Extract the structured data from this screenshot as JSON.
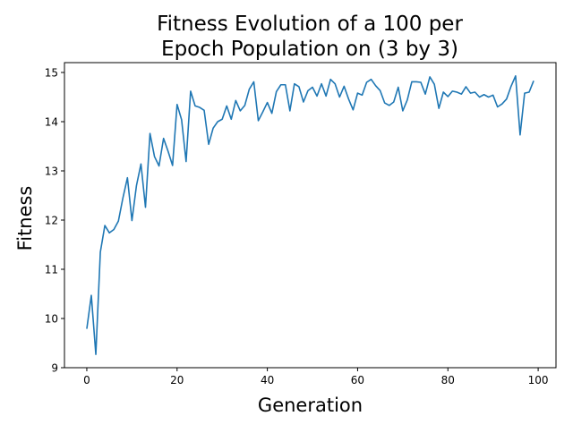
{
  "chart_data": {
    "type": "line",
    "title_lines": [
      "Fitness Evolution of a 100 per",
      "Epoch Population on (3 by 3)"
    ],
    "xlabel": "Generation",
    "ylabel": "Fitness",
    "xlim": [
      -4.95,
      103.95
    ],
    "ylim": [
      9.0,
      15.2
    ],
    "xticks": [
      0,
      20,
      40,
      60,
      80,
      100
    ],
    "xtick_labels": [
      "0",
      "20",
      "40",
      "60",
      "80",
      "100"
    ],
    "yticks": [
      9,
      10,
      11,
      12,
      13,
      14,
      15
    ],
    "ytick_labels": [
      "9",
      "10",
      "11",
      "12",
      "13",
      "14",
      "15"
    ],
    "grid": false,
    "series": [
      {
        "color": "#1f77b4",
        "x": [
          0,
          1,
          2,
          3,
          4,
          5,
          6,
          7,
          8,
          9,
          10,
          11,
          12,
          13,
          14,
          15,
          16,
          17,
          18,
          19,
          20,
          21,
          22,
          23,
          24,
          25,
          26,
          27,
          28,
          29,
          30,
          31,
          32,
          33,
          34,
          35,
          36,
          37,
          38,
          39,
          40,
          41,
          42,
          43,
          44,
          45,
          46,
          47,
          48,
          49,
          50,
          51,
          52,
          53,
          54,
          55,
          56,
          57,
          58,
          59,
          60,
          61,
          62,
          63,
          64,
          65,
          66,
          67,
          68,
          69,
          70,
          71,
          72,
          73,
          74,
          75,
          76,
          77,
          78,
          79,
          80,
          81,
          82,
          83,
          84,
          85,
          86,
          87,
          88,
          89,
          90,
          91,
          92,
          93,
          94,
          95,
          96,
          97,
          98,
          99
        ],
        "y": [
          9.79,
          10.47,
          9.27,
          11.35,
          11.89,
          11.74,
          11.81,
          11.98,
          12.45,
          12.86,
          11.99,
          12.7,
          13.14,
          12.26,
          13.76,
          13.29,
          13.1,
          13.66,
          13.4,
          13.11,
          14.35,
          14.04,
          13.19,
          14.62,
          14.32,
          14.29,
          14.23,
          13.54,
          13.87,
          14.0,
          14.05,
          14.32,
          14.05,
          14.43,
          14.22,
          14.33,
          14.66,
          14.81,
          14.02,
          14.2,
          14.39,
          14.17,
          14.61,
          14.75,
          14.75,
          14.22,
          14.77,
          14.71,
          14.4,
          14.63,
          14.7,
          14.52,
          14.77,
          14.52,
          14.86,
          14.77,
          14.5,
          14.72,
          14.46,
          14.24,
          14.58,
          14.54,
          14.8,
          14.86,
          14.73,
          14.63,
          14.38,
          14.33,
          14.4,
          14.7,
          14.22,
          14.44,
          14.81,
          14.81,
          14.8,
          14.56,
          14.91,
          14.76,
          14.27,
          14.6,
          14.51,
          14.62,
          14.6,
          14.56,
          14.71,
          14.58,
          14.6,
          14.5,
          14.55,
          14.5,
          14.54,
          14.3,
          14.36,
          14.46,
          14.72,
          14.93,
          13.73,
          14.58,
          14.6,
          14.83
        ]
      }
    ]
  }
}
